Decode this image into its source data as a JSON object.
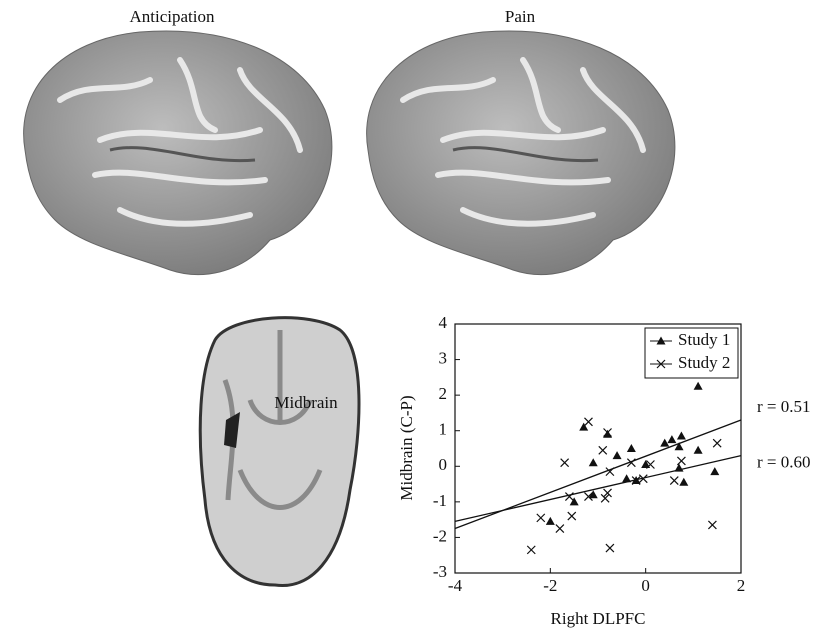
{
  "images": {
    "labels": [
      "Anticipation",
      "Pain"
    ],
    "slice_label": "Midbrain"
  },
  "chart_data": {
    "type": "scatter",
    "xlabel": "Right DLPFC",
    "ylabel": "Midbrain (C-P)",
    "xlim": [
      -4,
      2
    ],
    "xticks": [
      -4,
      -2,
      0,
      2
    ],
    "ylim": [
      -3,
      4
    ],
    "yticks": [
      -3,
      -2,
      -1,
      0,
      1,
      2,
      3,
      4
    ],
    "legend": "upper right",
    "series": [
      {
        "name": "Study 1",
        "marker": "triangle",
        "color": "#111111",
        "x": [
          1.1,
          -1.3,
          -0.8,
          -0.3,
          0.4,
          0.55,
          0.75,
          0.7,
          1.1,
          -1.1,
          -0.6,
          -0.2,
          0.0,
          0.8,
          1.45,
          -1.5,
          -2.0,
          -1.1,
          -0.4,
          0.7
        ],
        "values": [
          2.25,
          1.1,
          0.9,
          0.5,
          0.65,
          0.75,
          0.85,
          0.55,
          0.45,
          0.1,
          0.3,
          -0.4,
          0.05,
          -0.45,
          -0.15,
          -1.0,
          -1.55,
          -0.8,
          -0.35,
          -0.05
        ]
      },
      {
        "name": "Study 2",
        "marker": "x",
        "color": "#111111",
        "x": [
          -1.2,
          -0.8,
          -1.7,
          -0.9,
          -0.75,
          -0.3,
          0.1,
          -0.05,
          -0.2,
          0.6,
          0.75,
          1.5,
          -1.6,
          -0.8,
          -0.85,
          -2.2,
          -1.8,
          -1.55,
          -2.4,
          -0.75,
          1.4,
          -1.2
        ],
        "values": [
          1.25,
          0.95,
          0.1,
          0.45,
          -0.15,
          0.1,
          0.05,
          -0.35,
          -0.4,
          -0.4,
          0.15,
          0.65,
          -0.85,
          -0.75,
          -0.9,
          -1.45,
          -1.75,
          -1.4,
          -2.35,
          -2.3,
          -1.65,
          -0.85
        ]
      }
    ],
    "fits": [
      {
        "label": "r = 0.51",
        "x": [
          -4,
          2
        ],
        "values": [
          -1.75,
          1.3
        ]
      },
      {
        "label": "r = 0.60",
        "x": [
          -4,
          2
        ],
        "values": [
          -1.55,
          0.3
        ]
      }
    ]
  }
}
